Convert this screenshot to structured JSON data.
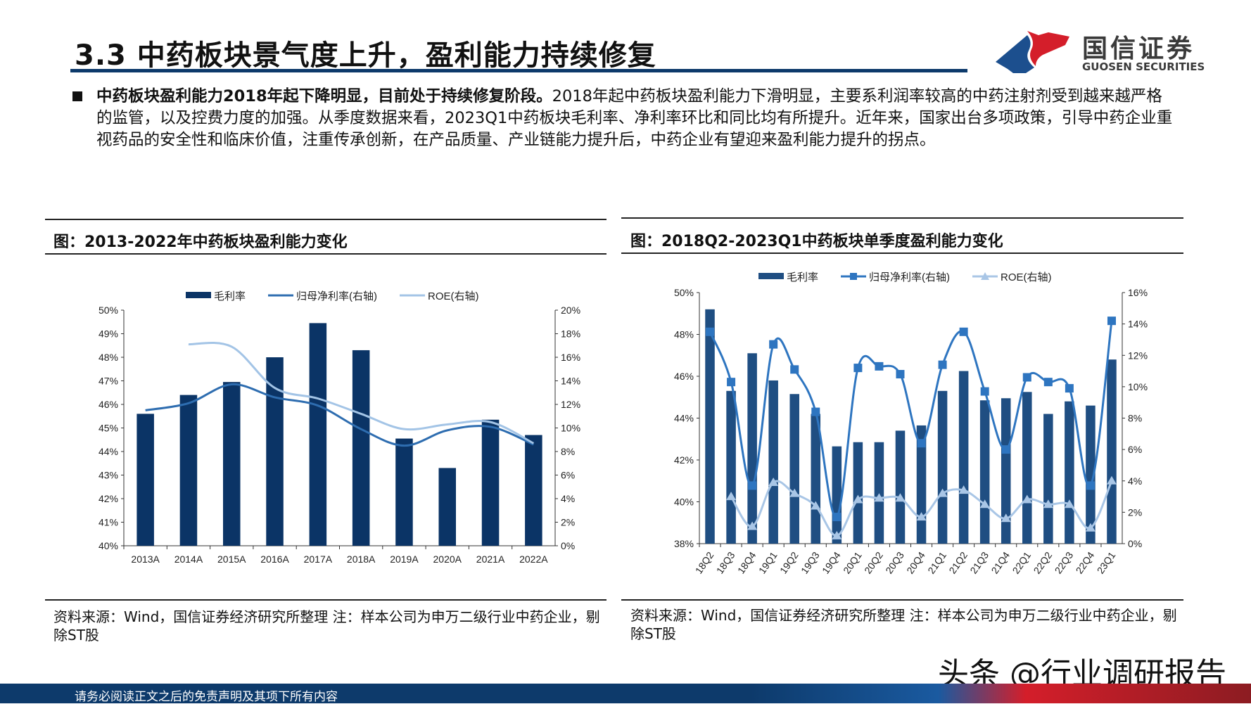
{
  "header": {
    "title": "3.3 中药板块景气度上升，盈利能力持续修复",
    "logo_cn": "国信证券",
    "logo_en": "GUOSEN SECURITIES",
    "logo_colors": {
      "blue": "#1c4f8e",
      "red": "#d41e2a"
    }
  },
  "bullet": {
    "lead": "中药板块盈利能力2018年起下降明显，目前处于持续修复阶段。",
    "body": "2018年起中药板块盈利能力下滑明显，主要系利润率较高的中药注射剂受到越来越严格的监管，以及控费力度的加强。从季度数据来看，2023Q1中药板块毛利率、净利率环比和同比均有所提升。近年来，国家出台多项政策，引导中药企业重视药品的安全性和临床价值，注重传承创新，在产品质量、产业链能力提升后，中药企业有望迎来盈利能力提升的拐点。"
  },
  "left_panel": {
    "title": "图：2013-2022年中药板块盈利能力变化",
    "source": "资料来源：Wind，国信证券经济研究所整理 注：样本公司为申万二级行业中药企业，剔除ST股"
  },
  "right_panel": {
    "title": "图：2018Q2-2023Q1中药板块单季度盈利能力变化",
    "source": "资料来源：Wind，国信证券经济研究所整理 注：样本公司为申万二级行业中药企业，剔除ST股"
  },
  "chart_data": [
    {
      "type": "bar+line",
      "categories": [
        "2013A",
        "2014A",
        "2015A",
        "2016A",
        "2017A",
        "2018A",
        "2019A",
        "2020A",
        "2021A",
        "2022A"
      ],
      "ylim": [
        40,
        50
      ],
      "yticks": [
        "40%",
        "41%",
        "42%",
        "43%",
        "44%",
        "45%",
        "46%",
        "47%",
        "48%",
        "49%",
        "50%"
      ],
      "y2lim": [
        0,
        20
      ],
      "y2ticks": [
        "0%",
        "2%",
        "4%",
        "6%",
        "8%",
        "10%",
        "12%",
        "14%",
        "16%",
        "18%",
        "20%"
      ],
      "legend_position": "top",
      "series": [
        {
          "name": "毛利率",
          "kind": "bar",
          "axis": "left",
          "color": "#0b3466",
          "values": [
            45.6,
            46.4,
            46.95,
            48.0,
            49.45,
            48.3,
            44.55,
            43.3,
            45.35,
            44.7
          ]
        },
        {
          "name": "归母净利率(右轴)",
          "kind": "line",
          "axis": "right",
          "color": "#2e6db0",
          "values": [
            11.5,
            12.1,
            13.7,
            12.6,
            11.9,
            9.9,
            8.5,
            9.8,
            10.1,
            8.6
          ]
        },
        {
          "name": "ROE(右轴)",
          "kind": "line",
          "axis": "right",
          "color": "#a3c4e6",
          "values": [
            null,
            17.1,
            16.9,
            13.4,
            12.5,
            11.2,
            9.9,
            10.3,
            10.5,
            8.7
          ]
        }
      ]
    },
    {
      "type": "bar+line",
      "categories": [
        "18Q2",
        "18Q3",
        "18Q4",
        "19Q1",
        "19Q2",
        "19Q3",
        "19Q4",
        "20Q1",
        "20Q2",
        "20Q3",
        "20Q4",
        "21Q1",
        "21Q2",
        "21Q3",
        "21Q4",
        "22Q1",
        "22Q2",
        "22Q3",
        "22Q4",
        "23Q1"
      ],
      "ylim": [
        38,
        50
      ],
      "yticks": [
        "38%",
        "40%",
        "42%",
        "44%",
        "46%",
        "48%",
        "50%"
      ],
      "y2lim": [
        0,
        16
      ],
      "y2ticks": [
        "0%",
        "2%",
        "4%",
        "6%",
        "8%",
        "10%",
        "12%",
        "14%",
        "16%"
      ],
      "legend_position": "top",
      "series": [
        {
          "name": "毛利率",
          "kind": "bar",
          "axis": "left",
          "color": "#1f4e82",
          "values": [
            49.2,
            45.3,
            47.1,
            45.8,
            45.15,
            44.2,
            42.65,
            42.85,
            42.85,
            43.4,
            43.65,
            45.3,
            46.25,
            44.85,
            44.95,
            45.25,
            44.2,
            44.8,
            44.6,
            46.8
          ]
        },
        {
          "name": "归母净利率(右轴)",
          "kind": "line",
          "axis": "right",
          "marker": "square",
          "color": "#2e75c0",
          "values": [
            13.5,
            10.3,
            3.7,
            12.7,
            11.1,
            8.4,
            1.7,
            11.2,
            11.3,
            10.8,
            6.4,
            11.4,
            13.5,
            9.7,
            6.0,
            10.6,
            10.3,
            9.9,
            3.7,
            14.2
          ]
        },
        {
          "name": "ROE(右轴)",
          "kind": "line",
          "axis": "right",
          "marker": "triangle",
          "color": "#a9c6e6",
          "values": [
            null,
            3.0,
            1.1,
            3.9,
            3.2,
            2.4,
            0.5,
            2.8,
            2.9,
            2.9,
            1.7,
            3.2,
            3.4,
            2.5,
            1.6,
            2.8,
            2.5,
            2.5,
            1.0,
            4.0
          ]
        }
      ]
    }
  ],
  "footer": {
    "disclaimer": "请务必阅读正文之后的免责声明及其项下所有内容",
    "watermark": "头条 @行业调研报告"
  }
}
